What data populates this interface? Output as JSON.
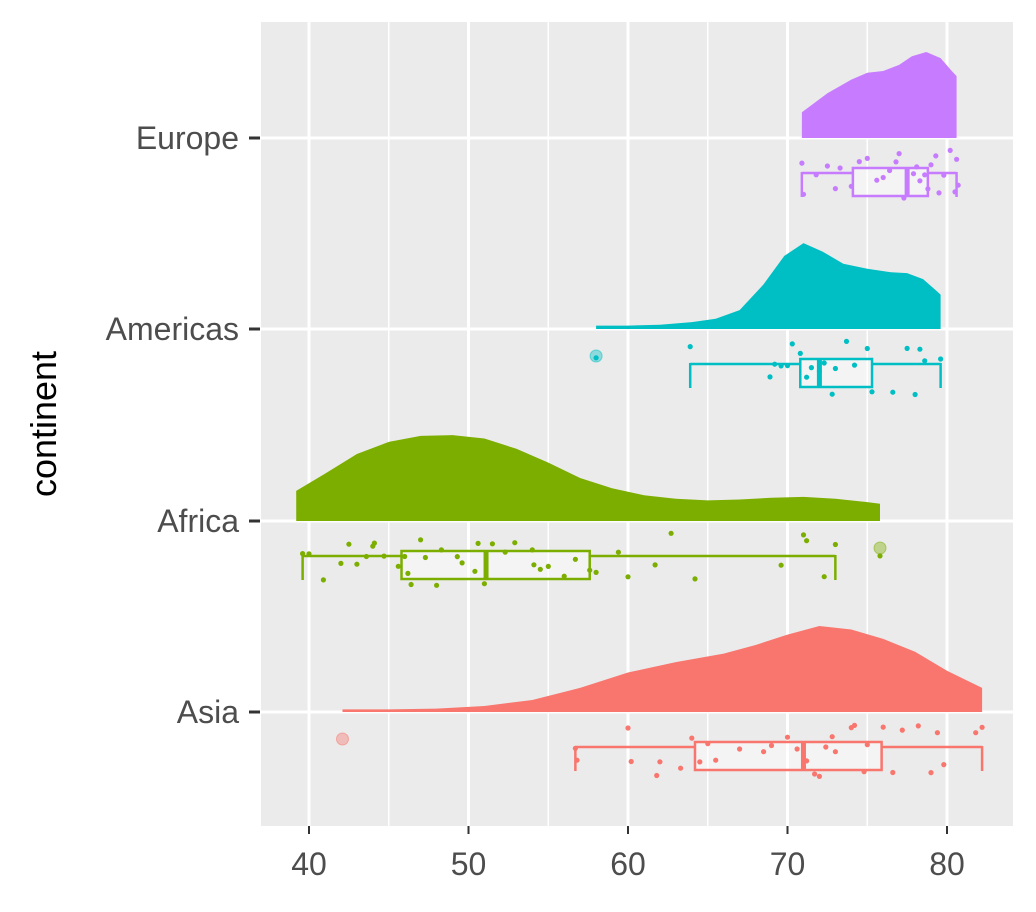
{
  "chart_data": {
    "type": "raincloud",
    "title": "",
    "xlabel": "",
    "ylabel": "continent",
    "xlim": [
      37,
      84.4
    ],
    "x_ticks": [
      40,
      50,
      60,
      70,
      80
    ],
    "categories": [
      "Asia",
      "Africa",
      "Americas",
      "Europe"
    ],
    "grid": true,
    "legend": "none",
    "colors": {
      "Asia": "#F8766D",
      "Africa": "#7CAE00",
      "Americas": "#00BFC4",
      "Europe": "#C77CFF"
    },
    "series": [
      {
        "name": "Europe",
        "box": {
          "whisker_low": 70.9,
          "q1": 74.1,
          "median": 77.5,
          "q3": 78.8,
          "whisker_high": 80.6
        },
        "outliers": [],
        "density": [
          [
            70.9,
            0.3
          ],
          [
            72.5,
            0.52
          ],
          [
            74.0,
            0.68
          ],
          [
            75.0,
            0.76
          ],
          [
            76.0,
            0.78
          ],
          [
            77.0,
            0.85
          ],
          [
            77.8,
            0.95
          ],
          [
            78.7,
            1.0
          ],
          [
            79.6,
            0.93
          ],
          [
            80.3,
            0.78
          ],
          [
            80.6,
            0.72
          ]
        ],
        "points": [
          70.9,
          71.0,
          71.8,
          72.5,
          73.0,
          73.3,
          74.0,
          74.5,
          75.0,
          75.6,
          76.0,
          76.4,
          76.8,
          77.0,
          77.3,
          77.9,
          78.1,
          78.3,
          78.6,
          78.8,
          79.0,
          79.3,
          79.5,
          79.8,
          80.2,
          80.5,
          80.6,
          80.7
        ]
      },
      {
        "name": "Americas",
        "box": {
          "whisker_low": 63.9,
          "q1": 70.8,
          "median": 72.0,
          "q3": 75.3,
          "whisker_high": 79.6
        },
        "outliers": [
          58.0
        ],
        "density": [
          [
            58.0,
            0.04
          ],
          [
            60.0,
            0.04
          ],
          [
            62.0,
            0.05
          ],
          [
            64.0,
            0.08
          ],
          [
            65.5,
            0.12
          ],
          [
            67.0,
            0.22
          ],
          [
            68.5,
            0.52
          ],
          [
            69.8,
            0.85
          ],
          [
            71.0,
            1.0
          ],
          [
            72.2,
            0.9
          ],
          [
            73.5,
            0.76
          ],
          [
            75.0,
            0.7
          ],
          [
            76.5,
            0.66
          ],
          [
            77.5,
            0.65
          ],
          [
            78.5,
            0.58
          ],
          [
            79.3,
            0.45
          ],
          [
            79.6,
            0.4
          ]
        ],
        "points": [
          58.0,
          63.9,
          68.9,
          69.2,
          69.6,
          70.0,
          70.3,
          70.8,
          71.2,
          71.5,
          72.0,
          72.3,
          72.8,
          73.0,
          73.7,
          74.2,
          75.0,
          75.3,
          76.6,
          77.5,
          78.0,
          78.3,
          78.6,
          79.6
        ]
      },
      {
        "name": "Africa",
        "box": {
          "whisker_low": 39.6,
          "q1": 45.8,
          "median": 51.1,
          "q3": 57.6,
          "whisker_high": 73.0
        },
        "outliers": [
          75.8
        ],
        "density": [
          [
            39.2,
            0.35
          ],
          [
            41.0,
            0.55
          ],
          [
            43.0,
            0.78
          ],
          [
            45.0,
            0.92
          ],
          [
            47.0,
            0.99
          ],
          [
            49.0,
            1.0
          ],
          [
            51.0,
            0.96
          ],
          [
            53.0,
            0.84
          ],
          [
            55.0,
            0.68
          ],
          [
            57.0,
            0.5
          ],
          [
            59.0,
            0.38
          ],
          [
            61.0,
            0.3
          ],
          [
            63.0,
            0.26
          ],
          [
            65.0,
            0.24
          ],
          [
            67.0,
            0.25
          ],
          [
            69.0,
            0.27
          ],
          [
            71.0,
            0.28
          ],
          [
            73.0,
            0.26
          ],
          [
            75.0,
            0.22
          ],
          [
            75.8,
            0.2
          ]
        ],
        "points": [
          39.6,
          40.0,
          40.9,
          42.0,
          42.5,
          43.0,
          43.6,
          44.0,
          44.1,
          44.7,
          45.6,
          46.0,
          46.2,
          46.4,
          47.0,
          47.3,
          48.0,
          48.3,
          49.3,
          49.6,
          50.4,
          50.6,
          51.0,
          51.5,
          52.3,
          52.9,
          54.0,
          54.1,
          54.5,
          55.0,
          56.0,
          56.7,
          57.6,
          58.0,
          59.4,
          60.0,
          61.7,
          62.7,
          64.2,
          69.6,
          71.0,
          71.2,
          72.3,
          73.0,
          75.8
        ]
      },
      {
        "name": "Asia",
        "box": {
          "whisker_low": 56.7,
          "q1": 64.2,
          "median": 71.0,
          "q3": 75.9,
          "whisker_high": 82.2
        },
        "outliers": [
          42.1
        ],
        "density": [
          [
            42.1,
            0.03
          ],
          [
            45.0,
            0.03
          ],
          [
            48.0,
            0.04
          ],
          [
            51.0,
            0.07
          ],
          [
            54.0,
            0.14
          ],
          [
            57.0,
            0.28
          ],
          [
            60.0,
            0.46
          ],
          [
            63.0,
            0.58
          ],
          [
            66.0,
            0.68
          ],
          [
            68.0,
            0.78
          ],
          [
            70.0,
            0.9
          ],
          [
            72.0,
            1.0
          ],
          [
            74.0,
            0.96
          ],
          [
            76.0,
            0.85
          ],
          [
            78.0,
            0.7
          ],
          [
            80.0,
            0.48
          ],
          [
            82.2,
            0.28
          ]
        ],
        "points": [
          56.7,
          56.8,
          60.0,
          60.2,
          61.8,
          62.0,
          63.3,
          64.0,
          64.5,
          65.0,
          65.5,
          67.0,
          68.5,
          69.0,
          70.0,
          70.6,
          71.0,
          71.2,
          71.7,
          72.0,
          72.4,
          72.8,
          73.0,
          74.0,
          74.2,
          74.8,
          75.0,
          76.0,
          76.6,
          77.2,
          78.2,
          79.0,
          79.4,
          79.8,
          81.8,
          82.2
        ]
      }
    ]
  }
}
